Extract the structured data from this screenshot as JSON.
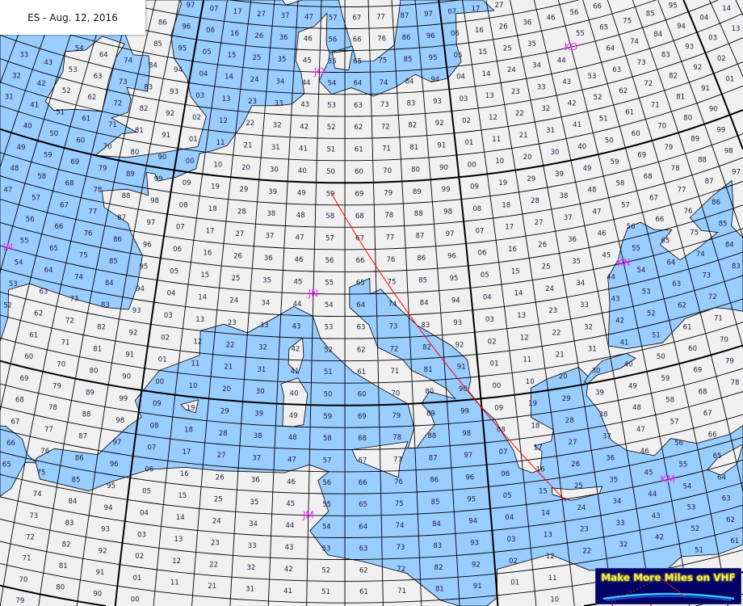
{
  "title": "ES - Aug. 12, 2016",
  "colors": {
    "sea": "#99ccff",
    "land": "#f0f0f0",
    "grid": "#000000",
    "square_label": "#1c1c3a",
    "field_label": "#ff22ff",
    "path": "#ff0000"
  },
  "grid": {
    "system": "Maidenhead locator",
    "square_lon_step_deg": 2,
    "square_lat_step_deg": 1,
    "field_lon_step_deg": 20,
    "field_lat_step_deg": 10
  },
  "field_labels": [
    "JO",
    "KO",
    "IN",
    "JN",
    "KN",
    "JM",
    "KM"
  ],
  "propagation_path": {
    "points": [
      [
        11.0,
        49.6
      ],
      [
        24.2,
        34.9
      ]
    ]
  },
  "logo": {
    "text": "Make More Miles on VHF",
    "background": "#000066",
    "text_color": "#ffff66"
  }
}
